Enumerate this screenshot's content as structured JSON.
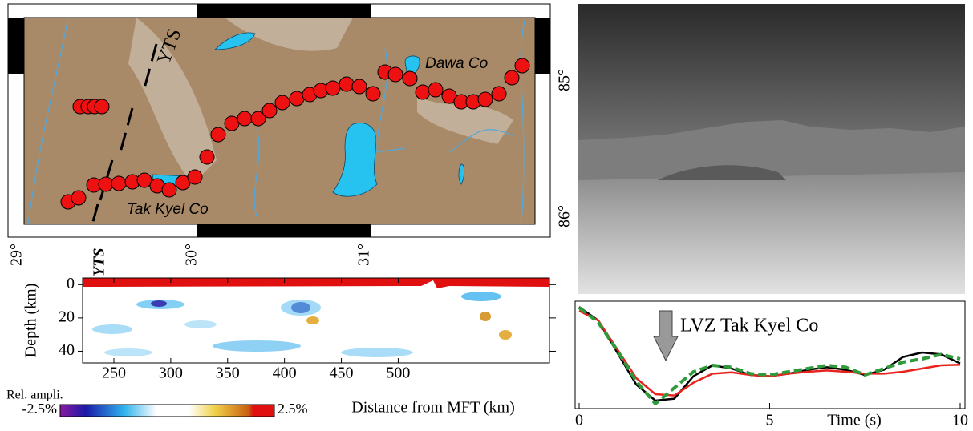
{
  "map": {
    "fault_label": "YTS",
    "lake_labels": [
      "Dawa Co",
      "Tak Kyel Co"
    ],
    "lon_ticks": [
      "29°",
      "30°",
      "31°"
    ],
    "lat_ticks": [
      "85°",
      "86°"
    ]
  },
  "chart_data": [
    {
      "type": "heatmap",
      "ylabel": "Depth (km)",
      "xlabel": "Distance from MFT (km)",
      "annotation": "YTS",
      "xlim": [
        222.5,
        633
      ],
      "xticks": [
        250,
        300,
        350,
        400,
        450,
        500
      ],
      "ylim": [
        -4,
        47
      ],
      "y_inverted": true,
      "yticks": [
        0,
        20,
        40
      ],
      "colorbar_title": "Rel. ampli.",
      "colorbar_lim": [
        -2.5,
        2.5
      ],
      "colorbar_ticks": [
        {
          "value": -2.5,
          "label": "-2.5%"
        },
        {
          "value": 2.5,
          "label": "2.5%"
        }
      ]
    },
    {
      "type": "line",
      "annotation": "LVZ Tak Kyel Co",
      "xlabel": "Time (s)",
      "xlim": [
        0,
        10
      ],
      "xticks": [
        0,
        5,
        10
      ],
      "ylim": [
        -0.525,
        1.15
      ],
      "x": [
        0,
        0.5,
        1,
        1.5,
        2,
        2.5,
        3,
        3.5,
        4,
        4.5,
        5,
        5.5,
        6,
        6.5,
        7,
        7.5,
        8,
        8.5,
        9,
        9.5,
        10
      ],
      "series": [
        {
          "color": "#000000",
          "values": [
            1.06,
            0.85,
            0.35,
            -0.15,
            -0.4,
            -0.37,
            -0.02,
            0.15,
            0.1,
            0,
            -0.02,
            0.02,
            0.08,
            0.12,
            0.08,
            0,
            0.08,
            0.28,
            0.35,
            0.32,
            0.18
          ]
        },
        {
          "color": "#e8231e",
          "values": [
            1.0,
            0.85,
            0.4,
            -0.05,
            -0.3,
            -0.32,
            -0.12,
            0.02,
            0.04,
            0,
            -0.02,
            0.02,
            0.05,
            0.07,
            0.05,
            0.02,
            0.02,
            0.05,
            0.1,
            0.15,
            0.16
          ]
        },
        {
          "color": "#2e9a3a",
          "dashed": true,
          "values": [
            1.05,
            0.82,
            0.38,
            -0.1,
            -0.45,
            -0.2,
            0.05,
            0.15,
            0.12,
            0.02,
            0,
            0.05,
            0.1,
            0.15,
            0.12,
            0,
            0.1,
            0.2,
            0.25,
            0.32,
            0.25
          ]
        }
      ]
    }
  ]
}
